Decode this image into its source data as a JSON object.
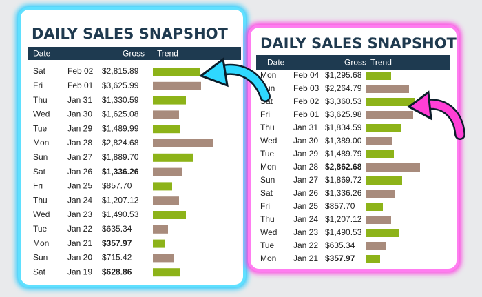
{
  "panels": [
    {
      "title": "DAILY SALES SNAPSHOT",
      "headers": [
        "Date",
        "Gross",
        "Trend"
      ],
      "rows": [
        {
          "day": "Sat",
          "date": "Feb 02",
          "gross": "$2,815.89",
          "trend": 68,
          "color": "#8db319"
        },
        {
          "day": "Fri",
          "date": "Feb 01",
          "gross": "$3,625.99",
          "trend": 70,
          "color": "#a88b7c"
        },
        {
          "day": "Thu",
          "date": "Jan 31",
          "gross": "$1,330.59",
          "trend": 48,
          "color": "#8db319"
        },
        {
          "day": "Wed",
          "date": "Jan 30",
          "gross": "$1,625.08",
          "trend": 38,
          "color": "#a88b7c"
        },
        {
          "day": "Tue",
          "date": "Jan 29",
          "gross": "$1,489.99",
          "trend": 40,
          "color": "#8db319"
        },
        {
          "day": "Mon",
          "date": "Jan 28",
          "gross": "$2,824.68",
          "trend": 88,
          "color": "#a88b7c"
        },
        {
          "day": "Sun",
          "date": "Jan 27",
          "gross": "$1,889.70",
          "trend": 58,
          "color": "#8db319"
        },
        {
          "day": "Sat",
          "date": "Jan 26",
          "gross": "$1,336.26",
          "trend": 42,
          "color": "#a88b7c",
          "bold": true
        },
        {
          "day": "Fri",
          "date": "Jan 25",
          "gross": "$857.70",
          "trend": 28,
          "color": "#8db319"
        },
        {
          "day": "Thu",
          "date": "Jan 24",
          "gross": "$1,207.12",
          "trend": 38,
          "color": "#a88b7c"
        },
        {
          "day": "Wed",
          "date": "Jan 23",
          "gross": "$1,490.53",
          "trend": 48,
          "color": "#8db319"
        },
        {
          "day": "Tue",
          "date": "Jan 22",
          "gross": "$635.34",
          "trend": 22,
          "color": "#a88b7c"
        },
        {
          "day": "Mon",
          "date": "Jan 21",
          "gross": "$357.97",
          "trend": 18,
          "color": "#8db319",
          "bold": true
        },
        {
          "day": "Sun",
          "date": "Jan 20",
          "gross": "$715.42",
          "trend": 30,
          "color": "#a88b7c"
        },
        {
          "day": "Sat",
          "date": "Jan 19",
          "gross": "$628.86",
          "trend": 40,
          "color": "#8db319",
          "bold": true
        }
      ]
    },
    {
      "title": "DAILY SALES SNAPSHOT",
      "headers": [
        "Date",
        "Gross",
        "Trend"
      ],
      "rows": [
        {
          "day": "Mon",
          "date": "Feb 04",
          "gross": "$1,295.68",
          "trend": 36,
          "color": "#8db319"
        },
        {
          "day": "Sun",
          "date": "Feb 03",
          "gross": "$2,264.79",
          "trend": 62,
          "color": "#a88b7c"
        },
        {
          "day": "Sat",
          "date": "Feb 02",
          "gross": "$3,360.53",
          "trend": 70,
          "color": "#8db319"
        },
        {
          "day": "Fri",
          "date": "Feb 01",
          "gross": "$3,625.98",
          "trend": 68,
          "color": "#a88b7c"
        },
        {
          "day": "Thu",
          "date": "Jan 31",
          "gross": "$1,834.59",
          "trend": 50,
          "color": "#8db319"
        },
        {
          "day": "Wed",
          "date": "Jan 30",
          "gross": "$1,389.00",
          "trend": 38,
          "color": "#a88b7c"
        },
        {
          "day": "Tue",
          "date": "Jan 29",
          "gross": "$1,489.79",
          "trend": 40,
          "color": "#8db319"
        },
        {
          "day": "Mon",
          "date": "Jan 28",
          "gross": "$2,862.68",
          "trend": 78,
          "color": "#a88b7c",
          "bold": true
        },
        {
          "day": "Sun",
          "date": "Jan 27",
          "gross": "$1,869.72",
          "trend": 52,
          "color": "#8db319"
        },
        {
          "day": "Sat",
          "date": "Jan 26",
          "gross": "$1,336.26",
          "trend": 42,
          "color": "#a88b7c"
        },
        {
          "day": "Fri",
          "date": "Jan 25",
          "gross": "$857.70",
          "trend": 24,
          "color": "#8db319"
        },
        {
          "day": "Thu",
          "date": "Jan 24",
          "gross": "$1,207.12",
          "trend": 36,
          "color": "#a88b7c"
        },
        {
          "day": "Wed",
          "date": "Jan 23",
          "gross": "$1,490.53",
          "trend": 48,
          "color": "#8db319"
        },
        {
          "day": "Tue",
          "date": "Jan 22",
          "gross": "$635.34",
          "trend": 28,
          "color": "#a88b7c"
        },
        {
          "day": "Mon",
          "date": "Jan 21",
          "gross": "$357.97",
          "trend": 20,
          "color": "#8db319",
          "bold": true
        }
      ]
    }
  ]
}
